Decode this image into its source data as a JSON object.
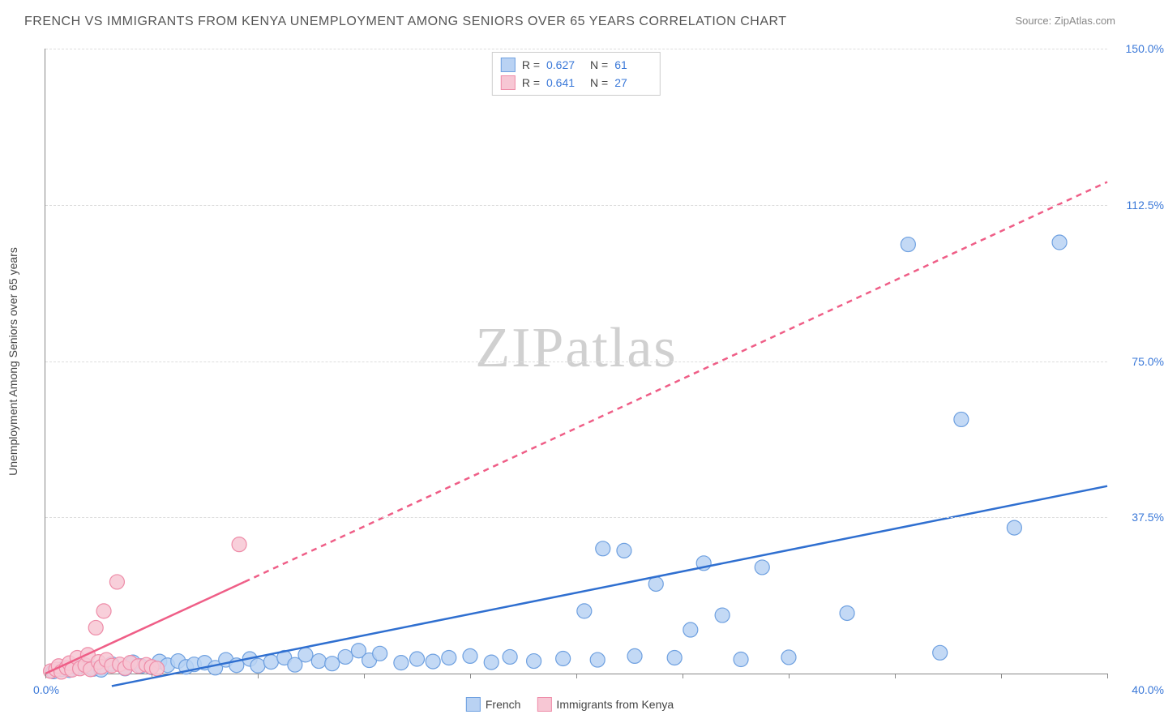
{
  "title": "FRENCH VS IMMIGRANTS FROM KENYA UNEMPLOYMENT AMONG SENIORS OVER 65 YEARS CORRELATION CHART",
  "source": "Source: ZipAtlas.com",
  "y_axis_label": "Unemployment Among Seniors over 65 years",
  "watermark": "ZIPatlas",
  "chart": {
    "type": "scatter",
    "background_color": "#ffffff",
    "grid_color": "#dddddd",
    "axis_color": "#888888",
    "xlim": [
      0,
      40
    ],
    "ylim": [
      0,
      150
    ],
    "x_origin_label": "0.0%",
    "x_max_label": "40.0%",
    "x_ticks": [
      0,
      4,
      8,
      12,
      16,
      20,
      24,
      28,
      32,
      36,
      40
    ],
    "y_grid": [
      {
        "v": 37.5,
        "label": "37.5%"
      },
      {
        "v": 75.0,
        "label": "75.0%"
      },
      {
        "v": 112.5,
        "label": "112.5%"
      },
      {
        "v": 150.0,
        "label": "150.0%"
      }
    ],
    "tick_label_color": "#3a78d8",
    "tick_fontsize": 14,
    "series": [
      {
        "name": "French",
        "marker_fill": "#b9d2f3",
        "marker_stroke": "#6ea0e0",
        "marker_radius": 9,
        "marker_opacity": 0.85,
        "line_color": "#2f6fd0",
        "line_width": 2.5,
        "line_dash": "none",
        "trend": {
          "x1": 2.5,
          "y1": -3,
          "x2": 40,
          "y2": 45
        },
        "points": [
          [
            0.3,
            0.5
          ],
          [
            0.6,
            1.0
          ],
          [
            0.9,
            0.8
          ],
          [
            1.2,
            1.5
          ],
          [
            1.5,
            2.0
          ],
          [
            1.8,
            1.1
          ],
          [
            2.1,
            0.9
          ],
          [
            2.5,
            2.3
          ],
          [
            3.0,
            1.2
          ],
          [
            3.3,
            2.7
          ],
          [
            3.6,
            1.8
          ],
          [
            4.0,
            1.5
          ],
          [
            4.3,
            2.9
          ],
          [
            4.6,
            2.0
          ],
          [
            5.0,
            3.0
          ],
          [
            5.3,
            1.6
          ],
          [
            5.6,
            2.2
          ],
          [
            6.0,
            2.6
          ],
          [
            6.4,
            1.4
          ],
          [
            6.8,
            3.3
          ],
          [
            7.2,
            2.0
          ],
          [
            7.7,
            3.5
          ],
          [
            8.0,
            1.9
          ],
          [
            8.5,
            2.8
          ],
          [
            9.0,
            3.8
          ],
          [
            9.4,
            2.1
          ],
          [
            9.8,
            4.5
          ],
          [
            10.3,
            3.0
          ],
          [
            10.8,
            2.4
          ],
          [
            11.3,
            4.0
          ],
          [
            11.8,
            5.5
          ],
          [
            12.2,
            3.2
          ],
          [
            12.6,
            4.8
          ],
          [
            13.4,
            2.6
          ],
          [
            14.0,
            3.5
          ],
          [
            14.6,
            2.9
          ],
          [
            15.2,
            3.8
          ],
          [
            16.0,
            4.2
          ],
          [
            16.8,
            2.7
          ],
          [
            17.5,
            4.0
          ],
          [
            18.4,
            3.0
          ],
          [
            19.5,
            3.6
          ],
          [
            20.3,
            15.0
          ],
          [
            20.8,
            3.3
          ],
          [
            21.0,
            30.0
          ],
          [
            21.8,
            29.5
          ],
          [
            22.2,
            4.2
          ],
          [
            23.0,
            21.5
          ],
          [
            23.7,
            3.8
          ],
          [
            24.3,
            10.5
          ],
          [
            24.8,
            26.5
          ],
          [
            25.5,
            14.0
          ],
          [
            26.2,
            3.4
          ],
          [
            27.0,
            25.5
          ],
          [
            28.0,
            3.9
          ],
          [
            30.2,
            14.5
          ],
          [
            32.5,
            103.0
          ],
          [
            33.7,
            5.0
          ],
          [
            34.5,
            61.0
          ],
          [
            36.5,
            35.0
          ],
          [
            38.2,
            103.5
          ]
        ]
      },
      {
        "name": "Immigrants from Kenya",
        "marker_fill": "#f7c7d4",
        "marker_stroke": "#ee8ca8",
        "marker_radius": 9,
        "marker_opacity": 0.85,
        "line_color": "#ef5e87",
        "line_width": 2.5,
        "line_dash": "solid_then_dash",
        "trend_solid": {
          "x1": 0,
          "y1": 0,
          "x2": 7.5,
          "y2": 22
        },
        "trend_dash": {
          "x1": 7.5,
          "y1": 22,
          "x2": 40,
          "y2": 118
        },
        "points": [
          [
            0.2,
            0.6
          ],
          [
            0.4,
            1.0
          ],
          [
            0.5,
            1.8
          ],
          [
            0.6,
            0.4
          ],
          [
            0.8,
            1.4
          ],
          [
            0.9,
            2.5
          ],
          [
            1.0,
            0.9
          ],
          [
            1.2,
            3.8
          ],
          [
            1.3,
            1.2
          ],
          [
            1.5,
            2.0
          ],
          [
            1.6,
            4.5
          ],
          [
            1.7,
            1.0
          ],
          [
            1.9,
            11.0
          ],
          [
            2.0,
            2.8
          ],
          [
            2.1,
            1.6
          ],
          [
            2.2,
            15.0
          ],
          [
            2.3,
            3.3
          ],
          [
            2.5,
            1.9
          ],
          [
            2.7,
            22.0
          ],
          [
            2.8,
            2.2
          ],
          [
            3.0,
            1.3
          ],
          [
            3.2,
            2.6
          ],
          [
            3.5,
            1.8
          ],
          [
            3.8,
            2.1
          ],
          [
            4.0,
            1.6
          ],
          [
            4.2,
            1.2
          ],
          [
            7.3,
            31.0
          ]
        ]
      }
    ]
  },
  "legend_top": [
    {
      "swatch_fill": "#b9d2f3",
      "swatch_stroke": "#6ea0e0",
      "r_label": "R =",
      "r_value": "0.627",
      "n_label": "N =",
      "n_value": "61"
    },
    {
      "swatch_fill": "#f7c7d4",
      "swatch_stroke": "#ee8ca8",
      "r_label": "R =",
      "r_value": "0.641",
      "n_label": "N =",
      "n_value": "27"
    }
  ],
  "legend_bottom": [
    {
      "swatch_fill": "#b9d2f3",
      "swatch_stroke": "#6ea0e0",
      "label": "French"
    },
    {
      "swatch_fill": "#f7c7d4",
      "swatch_stroke": "#ee8ca8",
      "label": "Immigrants from Kenya"
    }
  ]
}
